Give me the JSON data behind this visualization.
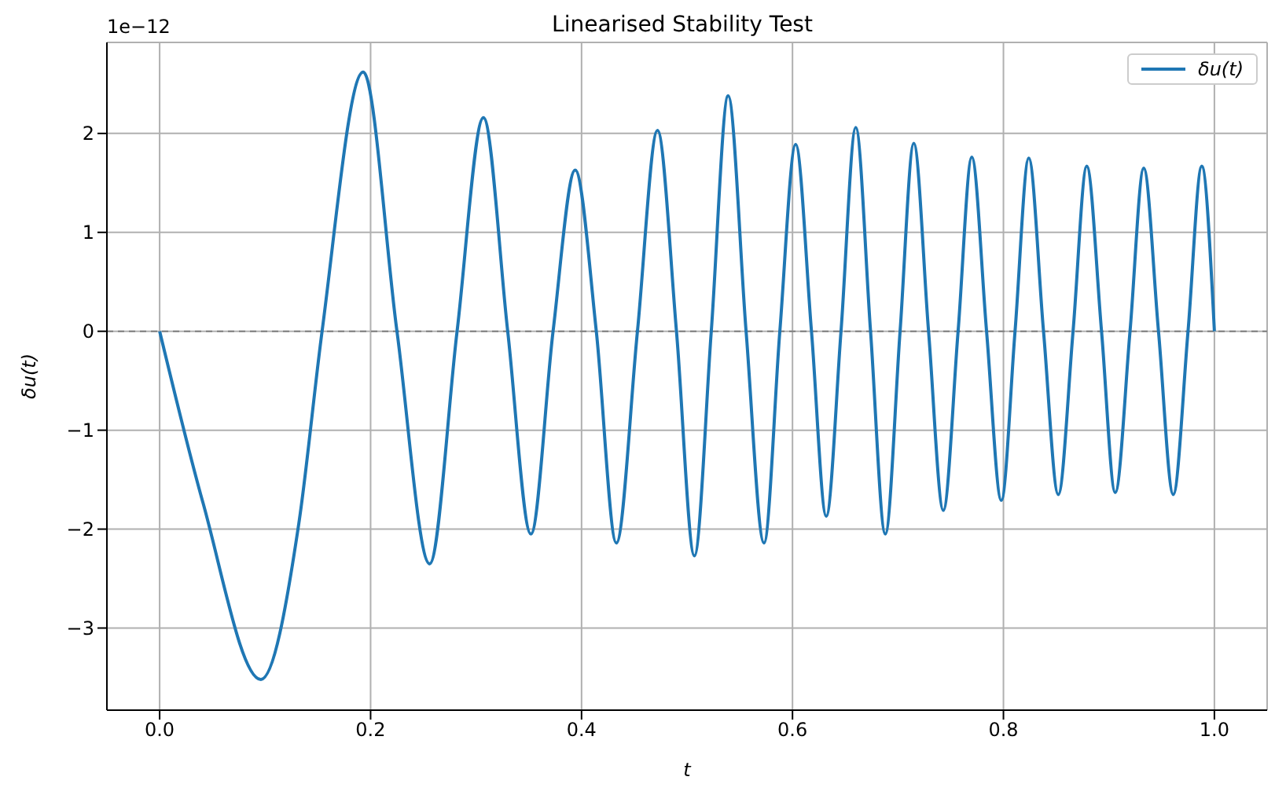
{
  "chart_data": {
    "type": "line",
    "title": "Linearised Stability Test",
    "xlabel": "t",
    "ylabel": "δu(t)",
    "annotations": [
      "1e−12"
    ],
    "xlim": [
      -0.05,
      1.05
    ],
    "xticks": [
      {
        "value": 0,
        "label": "0.0"
      },
      0.2,
      0.4,
      0.6,
      0.8,
      {
        "value": 1,
        "label": "1.0"
      }
    ],
    "ylim": [
      -3.83,
      2.92
    ],
    "yticks": [
      {
        "value": -3,
        "label": "−3"
      },
      {
        "value": -2,
        "label": "−2"
      },
      {
        "value": -1,
        "label": "−1"
      },
      0,
      1,
      2
    ],
    "grid": true,
    "legend": "top right",
    "line_style": "solid",
    "marker": "none",
    "ref_lines": [
      {
        "axis": "y",
        "value": 0,
        "label": null,
        "color": "#808080",
        "line_style": "dashed"
      }
    ],
    "series": [
      {
        "name": "δu(t)",
        "color": "#1f77b4",
        "x": [
          0,
          0.041,
          0.096,
          0.132,
          0.154,
          0.193,
          0.225,
          0.256,
          0.282,
          0.307,
          0.33,
          0.352,
          0.373,
          0.394,
          0.414,
          0.433,
          0.453,
          0.472,
          0.49,
          0.507,
          0.523,
          0.539,
          0.556,
          0.573,
          0.588,
          0.603,
          0.618,
          0.632,
          0.646,
          0.66,
          0.674,
          0.688,
          0.702,
          0.715,
          0.729,
          0.743,
          0.757,
          0.77,
          0.784,
          0.798,
          0.811,
          0.824,
          0.838,
          0.852,
          0.866,
          0.879,
          0.893,
          0.906,
          0.92,
          0.933,
          0.947,
          0.961,
          0.975,
          0.988,
          1
        ],
        "values": [
          0,
          -1.73,
          -3.52,
          -1.94,
          0,
          2.62,
          0,
          -2.35,
          0,
          2.16,
          0,
          -2.05,
          0,
          1.63,
          0,
          -2.14,
          0,
          2.03,
          0,
          -2.27,
          0,
          2.38,
          0,
          -2.14,
          0,
          1.89,
          0,
          -1.87,
          0,
          2.06,
          0,
          -2.05,
          0,
          1.9,
          0,
          -1.81,
          0,
          1.76,
          0,
          -1.71,
          0,
          1.75,
          0,
          -1.65,
          0,
          1.67,
          0,
          -1.63,
          0,
          1.65,
          0,
          -1.65,
          0,
          1.67,
          0
        ]
      }
    ]
  }
}
